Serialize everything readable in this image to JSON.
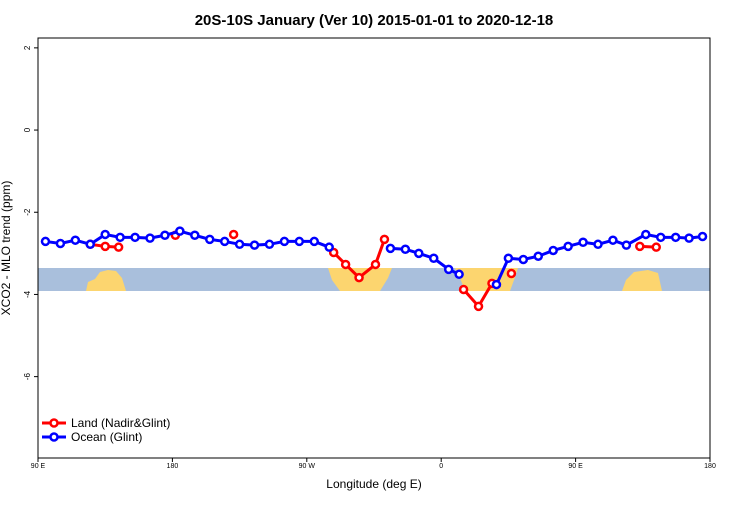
{
  "chart_data": {
    "type": "line",
    "title": "20S-10S January (Ver 10)   2015-01-01 to 2020-12-18",
    "x_label": "Longitude (deg E)",
    "y_label": "XCO2 - MLO trend (ppm)",
    "xlim": [
      90,
      540
    ],
    "xticks": [
      {
        "value": 90,
        "label": "90 E"
      },
      180,
      {
        "value": 270,
        "label": "90 W"
      },
      {
        "value": 360,
        "label": "0"
      },
      {
        "value": 450,
        "label": "90 E"
      },
      {
        "value": 540,
        "label": "180"
      }
    ],
    "ylim": [
      -7.98,
      2.24
    ],
    "yticks": [
      2,
      0,
      -2,
      -4,
      -6
    ],
    "legend": "bottom-left",
    "series": [
      {
        "name": "Land (Nadir&Glint)",
        "color": "#ff0000",
        "x": [
          125,
          135,
          144,
          null,
          182,
          null,
          221,
          null,
          288,
          296,
          305,
          316,
          322,
          null,
          375,
          385,
          394,
          null,
          407,
          null,
          493,
          504
        ],
        "values": [
          -2.78,
          -2.83,
          -2.85,
          null,
          -2.56,
          null,
          -2.54,
          null,
          -2.98,
          -3.27,
          -3.59,
          -3.27,
          -2.66,
          null,
          -3.88,
          -4.29,
          -3.73,
          null,
          -3.49,
          null,
          -2.83,
          -2.85
        ]
      },
      {
        "name": "Ocean (Glint)",
        "color": "#0000ff",
        "x": [
          95,
          105,
          115,
          125,
          135,
          145,
          155,
          165,
          175,
          185,
          195,
          205,
          215,
          225,
          235,
          245,
          255,
          265,
          275,
          285,
          null,
          326,
          336,
          345,
          355,
          365,
          372,
          null,
          397,
          405,
          415,
          425,
          435,
          445,
          455,
          465,
          475,
          484,
          497,
          507,
          517,
          526,
          535
        ],
        "values": [
          -2.71,
          -2.76,
          -2.68,
          -2.78,
          -2.54,
          -2.61,
          -2.61,
          -2.63,
          -2.56,
          -2.46,
          -2.56,
          -2.66,
          -2.71,
          -2.78,
          -2.8,
          -2.78,
          -2.71,
          -2.71,
          -2.71,
          -2.85,
          null,
          -2.88,
          -2.9,
          -3.0,
          -3.12,
          -3.39,
          -3.51,
          null,
          -3.76,
          -3.12,
          -3.15,
          -3.07,
          -2.93,
          -2.83,
          -2.73,
          -2.78,
          -2.68,
          -2.8,
          -2.54,
          -2.61,
          -2.61,
          -2.63,
          -2.59
        ]
      }
    ]
  }
}
